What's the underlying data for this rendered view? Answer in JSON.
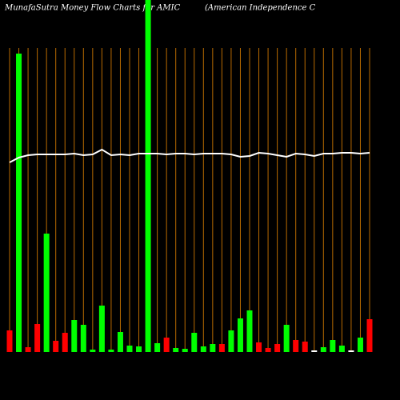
{
  "chart_data": {
    "type": "bar",
    "title": "MunafaSutra  Money Flow  Charts for AMIC",
    "subtitle": "(American  Independence   C",
    "ylim": [
      0,
      440
    ],
    "series": [
      {
        "type": "bar",
        "values": [
          27,
          373,
          6,
          35,
          148,
          14,
          24,
          40,
          34,
          3,
          58,
          3,
          25,
          8,
          7,
          440,
          11,
          18,
          5,
          4,
          24,
          7,
          10,
          10,
          27,
          42,
          52,
          12,
          5,
          10,
          34,
          15,
          13,
          2,
          6,
          15,
          8,
          2,
          18,
          41
        ],
        "colors": [
          "#ff0000",
          "#00ff00",
          "#ff0000",
          "#ff0000",
          "#00ff00",
          "#ff0000",
          "#ff0000",
          "#00ff00",
          "#00ff00",
          "#00ff00",
          "#00ff00",
          "#00ff00",
          "#00ff00",
          "#00ff00",
          "#00ff00",
          "#00ff00",
          "#00ff00",
          "#ff0000",
          "#00ff00",
          "#00ff00",
          "#00ff00",
          "#00ff00",
          "#00ff00",
          "#ff0000",
          "#00ff00",
          "#00ff00",
          "#00ff00",
          "#ff0000",
          "#ff0000",
          "#ff0000",
          "#00ff00",
          "#ff0000",
          "#ff0000",
          "#ffffff",
          "#00ff00",
          "#00ff00",
          "#00ff00",
          "#ffffff",
          "#00ff00",
          "#ff0000"
        ]
      },
      {
        "type": "line",
        "color": "#ffffff",
        "values": [
          237,
          243,
          246,
          247,
          247,
          247,
          247,
          248,
          246,
          247,
          253,
          246,
          247,
          246,
          248,
          248,
          248,
          247,
          248,
          248,
          247,
          248,
          248,
          248,
          247,
          244,
          245,
          249,
          248,
          246,
          244,
          248,
          247,
          245,
          248,
          248,
          249,
          249,
          248,
          249
        ]
      }
    ]
  }
}
